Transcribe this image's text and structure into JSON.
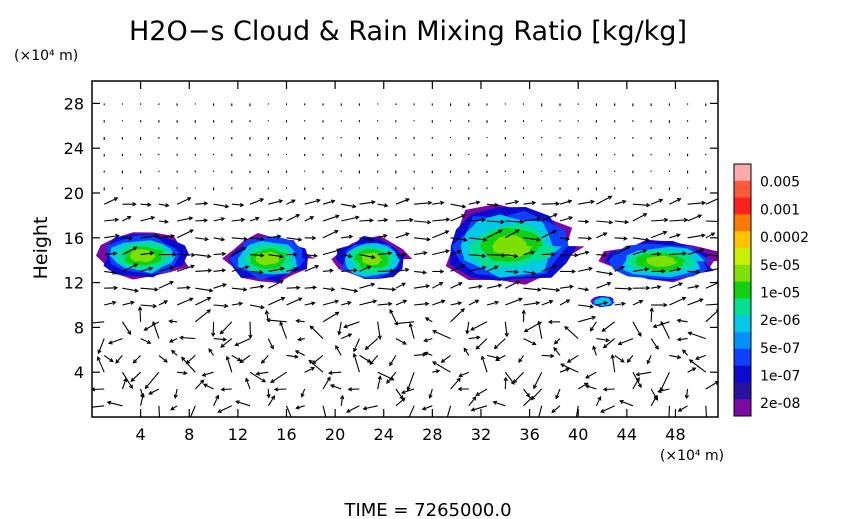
{
  "chart_data": {
    "type": "heatmap",
    "title": "H2O−s Cloud & Rain Mixing Ratio [kg/kg]",
    "ylabel": "Height",
    "y_unit": "(×10⁴ m)",
    "x_unit": "(×10⁴ m)",
    "footer": "TIME  =  7265000.0",
    "xlim": [
      0,
      51.5
    ],
    "ylim": [
      0,
      30
    ],
    "x_ticks": [
      4,
      8,
      12,
      16,
      20,
      24,
      28,
      32,
      36,
      40,
      44,
      48
    ],
    "y_ticks": [
      4,
      8,
      12,
      16,
      20,
      24,
      28
    ],
    "colorbar": {
      "labels": [
        "0.005",
        "0.001",
        "0.0002",
        "5e-05",
        "1e-05",
        "2e-06",
        "5e-07",
        "1e-07",
        "2e-08"
      ],
      "colors": [
        "#ffaaaa",
        "#ff5a3c",
        "#ff2020",
        "#ff7a00",
        "#ffc400",
        "#c8f000",
        "#7ee000",
        "#10d010",
        "#00e090",
        "#00c8e8",
        "#0090ff",
        "#1040ff",
        "#0a0ad0",
        "#2a12a0",
        "#7a0aa0"
      ]
    },
    "cloud_regions": [
      {
        "x": [
          0.5,
          8.0
        ],
        "y": [
          12.3,
          16.5
        ],
        "level": 7
      },
      {
        "x": [
          11.0,
          18.0
        ],
        "y": [
          12.0,
          16.3
        ],
        "level": 7
      },
      {
        "x": [
          20.0,
          26.0
        ],
        "y": [
          12.0,
          16.2
        ],
        "level": 7
      },
      {
        "x": [
          29.0,
          40.0
        ],
        "y": [
          11.5,
          19.0
        ],
        "level": 8
      },
      {
        "x": [
          42.0,
          51.5
        ],
        "y": [
          12.0,
          15.8
        ],
        "level": 7
      },
      {
        "x": [
          41.0,
          43.0
        ],
        "y": [
          9.8,
          10.8
        ],
        "level": 3
      }
    ],
    "grid": false
  }
}
